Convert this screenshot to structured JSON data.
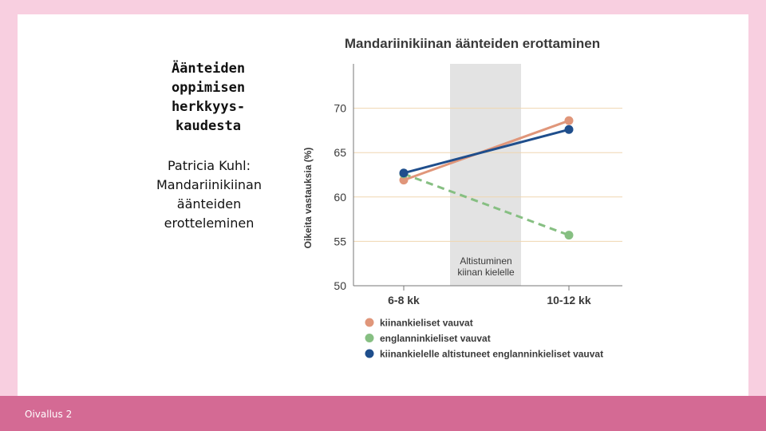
{
  "slide": {
    "title_lines": [
      "Äänteiden",
      "oppimisen",
      "herkkyys-",
      "kaudesta"
    ],
    "subtitle_lines": [
      "Patricia Kuhl:",
      "Mandariinikiinan",
      "äänteiden",
      "erotteleminen"
    ],
    "footer": "Oivallus 2"
  },
  "chart_data": {
    "type": "line",
    "title": "Mandariinikiinan äänteiden erottaminen",
    "ylabel": "Oikeita vastauksia (%)",
    "xlabel": "",
    "categories": [
      "6-8 kk",
      "10-12 kk"
    ],
    "ylim": [
      50,
      75
    ],
    "yticks": [
      50,
      55,
      60,
      65,
      70
    ],
    "grid": true,
    "legend_position": "bottom",
    "shaded_region_label": [
      "Altistuminen",
      "kiinan kielelle"
    ],
    "series": [
      {
        "name": "kiinankieliset vauvat",
        "values": [
          61.9,
          68.6
        ],
        "color": "#e0967a",
        "style": "solid"
      },
      {
        "name": "englanninkieliset vauvat",
        "values": [
          62.6,
          55.7
        ],
        "color": "#86bf82",
        "style": "dashed"
      },
      {
        "name": "kiinankielelle altistuneet englanninkieliset vauvat",
        "values": [
          62.7,
          67.6
        ],
        "color": "#1f4e8c",
        "style": "solid"
      }
    ],
    "colors": {
      "grid": "#f0d6b0",
      "shade": "#e3e3e3",
      "text": "#3a3a3a"
    }
  }
}
